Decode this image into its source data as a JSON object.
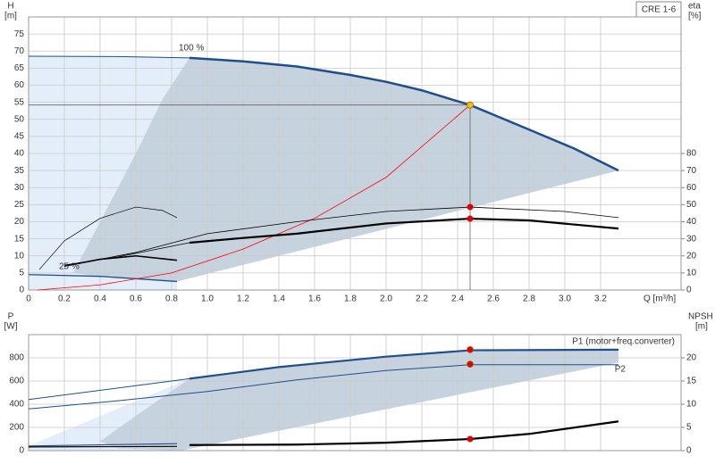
{
  "chart_data": [
    {
      "type": "line",
      "title": "CRE 1-6",
      "y_label": "H",
      "y_unit": "[m]",
      "y2_label": "eta",
      "y2_unit": "[%]",
      "x_label": "Q [m³/h]",
      "xlim": [
        0,
        3.65
      ],
      "xticks": [
        0,
        0.2,
        0.4,
        0.6,
        0.8,
        {
          "value": 1,
          "label": "1.0"
        },
        1.2,
        1.4,
        1.6,
        1.8,
        {
          "value": 2,
          "label": "2.0"
        },
        2.2,
        2.4,
        2.6,
        2.8,
        {
          "value": 3,
          "label": "3.0"
        },
        3.2
      ],
      "xtick_labels": true,
      "ylim": [
        0,
        80
      ],
      "yticks": [
        0,
        5,
        10,
        15,
        20,
        25,
        30,
        35,
        40,
        45,
        50,
        55,
        60,
        65,
        70,
        75
      ],
      "y2lim": [
        0,
        160
      ],
      "y2ticks": [
        0,
        10,
        20,
        30,
        40,
        50,
        60,
        70,
        80
      ],
      "grid": true,
      "areas": [
        {
          "color": "#e4eefa",
          "x": [
            0,
            0.5,
            0.9,
            0.83,
            0
          ],
          "values": [
            68.5,
            68.4,
            68,
            0,
            0
          ]
        },
        {
          "color": "#c6d3df",
          "x": [
            0.9,
            1.2,
            1.5,
            1.8,
            2.0,
            2.2,
            2.47,
            2.8,
            3.05,
            3.3,
            0.83,
            0.4,
            0.25,
            0.4,
            0.6,
            0.75
          ],
          "values": [
            68,
            67,
            65.5,
            63,
            61,
            58.5,
            54.2,
            47,
            41.5,
            35,
            2.5,
            4,
            5,
            20,
            40,
            56
          ]
        }
      ],
      "series": [
        {
          "color": "#1f4e8c",
          "width": 1,
          "x": [
            0,
            0.5,
            0.9
          ],
          "values": [
            68.5,
            68.4,
            68
          ]
        },
        {
          "color": "#1f4e8c",
          "width": 2.5,
          "x": [
            0.9,
            1.2,
            1.5,
            1.8,
            2.0,
            2.2,
            2.47,
            2.8,
            3.05,
            3.3
          ],
          "values": [
            68,
            67,
            65.5,
            63,
            61,
            58.5,
            54.2,
            47,
            41.5,
            35
          ]
        },
        {
          "color": "#1f4e8c",
          "width": 1.3,
          "x": [
            0,
            0.4,
            0.83
          ],
          "values": [
            4.5,
            4,
            2.5
          ]
        },
        {
          "color": "#ff0000",
          "width": 0.8,
          "x": [
            0.05,
            0.4,
            0.8,
            1.2,
            1.6,
            2.0,
            2.47
          ],
          "values": [
            0,
            1.5,
            5,
            12,
            21,
            33,
            54.2
          ]
        },
        {
          "color": "#000000",
          "width": 2.2,
          "axis": "y2",
          "x": [
            0.9,
            1.2,
            1.5,
            2.0,
            2.47,
            2.8,
            3.3
          ],
          "values": [
            27.7,
            30.5,
            33,
            39,
            41.8,
            40.8,
            36
          ]
        },
        {
          "color": "#000000",
          "width": 0.8,
          "axis": "y2",
          "x": [
            0.2,
            0.5,
            0.9
          ],
          "values": [
            14.6,
            19.4,
            27.7
          ]
        },
        {
          "color": "#000000",
          "width": 0.8,
          "axis": "y2",
          "x": [
            0.25,
            0.6,
            1.0,
            1.5,
            2.0,
            2.47,
            3.0,
            3.3
          ],
          "values": [
            15,
            22,
            33,
            40,
            46,
            48.6,
            46,
            42.4
          ]
        },
        {
          "color": "#000000",
          "width": 0.7,
          "axis": "y2",
          "x": [
            0.06,
            0.2,
            0.4,
            0.6,
            0.75,
            0.83
          ],
          "values": [
            12,
            28.8,
            42,
            48.6,
            46.6,
            42.4
          ]
        },
        {
          "color": "#000000",
          "width": 1.6,
          "axis": "y2",
          "x": [
            0.2,
            0.4,
            0.6,
            0.83
          ],
          "values": [
            14,
            18,
            20,
            17.4
          ]
        }
      ],
      "points": [
        {
          "color": "#f5c000",
          "x": 2.47,
          "y": 54.2
        },
        {
          "color": "#e00000",
          "axis": "y2",
          "x": 2.47,
          "y": 48.6
        },
        {
          "color": "#e00000",
          "axis": "y2",
          "x": 2.47,
          "y": 41.8
        }
      ],
      "annotations": [
        "100 %",
        "25 %"
      ]
    },
    {
      "type": "line",
      "y_label": "P",
      "y_unit": "[W]",
      "y2_label": "NPSH",
      "y2_unit": "[m]",
      "xlim": [
        0,
        3.65
      ],
      "xticks": [
        0,
        0.2,
        0.4,
        0.6,
        0.8,
        1,
        1.2,
        1.4,
        1.6,
        1.8,
        2,
        2.2,
        2.4,
        2.6,
        2.8,
        3,
        3.2
      ],
      "xtick_labels": false,
      "ylim": [
        0,
        1000
      ],
      "yticks": [
        0,
        200,
        400,
        600,
        800
      ],
      "y2lim": [
        0,
        25
      ],
      "y2ticks": [
        0,
        5,
        10,
        15,
        20
      ],
      "grid": true,
      "areas": [
        {
          "color": "#e4eefa",
          "x": [
            0,
            0.9,
            0.85,
            0
          ],
          "values": [
            40,
            620,
            0,
            0
          ]
        },
        {
          "color": "#c6d3df",
          "x": [
            0.9,
            1.4,
            2.0,
            2.47,
            3.3,
            3.3,
            0.85,
            0.5,
            0.4,
            0.6
          ],
          "values": [
            620,
            720,
            810,
            865,
            870,
            760,
            0,
            20,
            80,
            300
          ]
        }
      ],
      "series": [
        {
          "color": "#1f4e8c",
          "width": 1,
          "x": [
            0,
            0.9
          ],
          "values": [
            440,
            620
          ]
        },
        {
          "color": "#1f4e8c",
          "width": 2.2,
          "x": [
            0.9,
            1.4,
            2.0,
            2.47,
            3.3
          ],
          "values": [
            620,
            720,
            810,
            865,
            870
          ]
        },
        {
          "color": "#1f4e8c",
          "width": 1,
          "x": [
            0,
            0.5,
            1.0,
            1.5,
            2.0,
            2.47,
            3.3
          ],
          "values": [
            360,
            430,
            510,
            610,
            690,
            740,
            740
          ]
        },
        {
          "color": "#1f4e8c",
          "width": 1.2,
          "x": [
            0,
            0.83
          ],
          "values": [
            40,
            60
          ]
        },
        {
          "color": "#000000",
          "width": 2.2,
          "axis": "y2",
          "x": [
            0.9,
            1.5,
            2.0,
            2.47,
            2.8,
            3.3
          ],
          "values": [
            1.2,
            1.3,
            1.7,
            2.5,
            3.6,
            6.3
          ]
        },
        {
          "color": "#000000",
          "width": 1.2,
          "axis": "y2",
          "x": [
            0,
            0.83
          ],
          "values": [
            0.8,
            0.9
          ]
        }
      ],
      "points": [
        {
          "color": "#e00000",
          "x": 2.47,
          "y": 870
        },
        {
          "color": "#e00000",
          "x": 2.47,
          "y": 745
        },
        {
          "color": "#e00000",
          "axis": "y2",
          "x": 2.47,
          "y": 2.5
        }
      ],
      "annotations": [
        "P1 (motor+freq.converter)",
        "P2"
      ]
    }
  ]
}
